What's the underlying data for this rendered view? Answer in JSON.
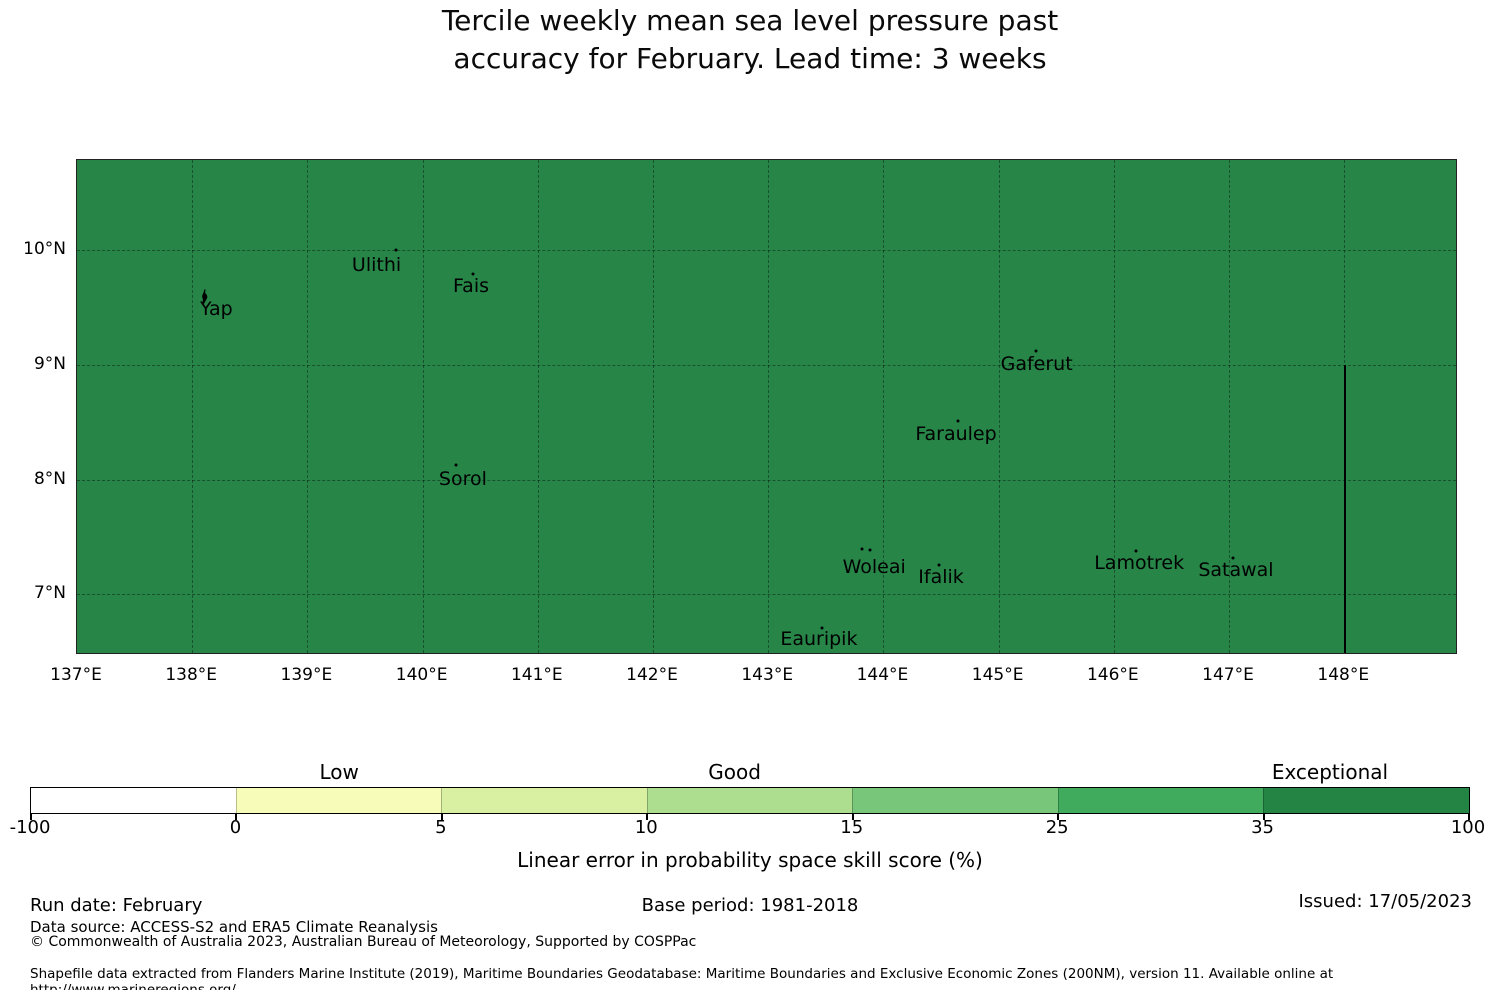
{
  "title": {
    "line1": "Tercile weekly mean sea level pressure past",
    "line2": "accuracy for February. Lead time: 3 weeks"
  },
  "chart_data": {
    "type": "heatmap",
    "subtype": "geographic skill score map (Federated States of Micronesia / Yap region)",
    "title": "Tercile weekly mean sea level pressure past accuracy for February. Lead time: 3 weeks",
    "field_note": "entire mapped region falls in the 35-100 skill bin (uniform dark green fill)",
    "map_fill_color": "#268547",
    "lon_range": [
      137.0,
      148.97
    ],
    "lat_range": [
      6.49,
      10.785
    ],
    "lon_gridlines": [
      138,
      139,
      140,
      141,
      142,
      143,
      144,
      145,
      146,
      147,
      148
    ],
    "lat_gridlines": [
      7,
      8,
      9,
      10
    ],
    "x_ticks": [
      {
        "label": "137°E",
        "lon": 137
      },
      {
        "label": "138°E",
        "lon": 138
      },
      {
        "label": "139°E",
        "lon": 139
      },
      {
        "label": "140°E",
        "lon": 140
      },
      {
        "label": "141°E",
        "lon": 141
      },
      {
        "label": "142°E",
        "lon": 142
      },
      {
        "label": "143°E",
        "lon": 143
      },
      {
        "label": "144°E",
        "lon": 144
      },
      {
        "label": "145°E",
        "lon": 145
      },
      {
        "label": "146°E",
        "lon": 146
      },
      {
        "label": "147°E",
        "lon": 147
      },
      {
        "label": "148°E",
        "lon": 148
      }
    ],
    "y_ticks": [
      {
        "label": "10°N",
        "lat": 10
      },
      {
        "label": "9°N",
        "lat": 9
      },
      {
        "label": "8°N",
        "lat": 8
      },
      {
        "label": "7°N",
        "lat": 7
      }
    ],
    "islands": [
      {
        "name": "yap",
        "label": "Yap",
        "label_lon": 138.21,
        "label_lat": 9.49,
        "shape": true,
        "markers": [
          [
            138.11,
            9.57
          ]
        ]
      },
      {
        "name": "ulithi",
        "label": "Ulithi",
        "label_lon": 139.6,
        "label_lat": 9.87,
        "markers": [
          [
            139.77,
            10.0
          ]
        ]
      },
      {
        "name": "fais",
        "label": "Fais",
        "label_lon": 140.42,
        "label_lat": 9.69,
        "markers": [
          [
            140.44,
            9.79
          ]
        ]
      },
      {
        "name": "sorol",
        "label": "Sorol",
        "label_lon": 140.35,
        "label_lat": 8.01,
        "markers": [
          [
            140.29,
            8.13
          ]
        ]
      },
      {
        "name": "gaferut",
        "label": "Gaferut",
        "label_lon": 145.33,
        "label_lat": 9.01,
        "markers": [
          [
            145.32,
            9.12
          ]
        ]
      },
      {
        "name": "faraulep",
        "label": "Faraulep",
        "label_lon": 144.63,
        "label_lat": 8.4,
        "markers": [
          [
            144.65,
            8.51
          ]
        ]
      },
      {
        "name": "woleai",
        "label": "Woleai",
        "label_lon": 143.92,
        "label_lat": 7.24,
        "markers": [
          [
            143.81,
            7.4
          ],
          [
            143.88,
            7.39
          ]
        ]
      },
      {
        "name": "ifalik",
        "label": "Ifalik",
        "label_lon": 144.5,
        "label_lat": 7.15,
        "markers": [
          [
            144.48,
            7.26
          ]
        ]
      },
      {
        "name": "lamotrek",
        "label": "Lamotrek",
        "label_lon": 146.22,
        "label_lat": 7.27,
        "markers": [
          [
            146.19,
            7.38
          ]
        ]
      },
      {
        "name": "satawal",
        "label": "Satawal",
        "label_lon": 147.06,
        "label_lat": 7.21,
        "markers": [
          [
            147.03,
            7.32
          ]
        ]
      },
      {
        "name": "eauripik",
        "label": "Eauripik",
        "label_lon": 143.44,
        "label_lat": 6.61,
        "markers": [
          [
            143.47,
            6.71
          ]
        ]
      }
    ],
    "boundary_line": {
      "lon": 148.0,
      "lat_from": 9.0,
      "lat_to": 6.49,
      "color": "#000000"
    },
    "colorbar": {
      "boundaries": [
        -100,
        0,
        5,
        10,
        15,
        25,
        35,
        100
      ],
      "tick_labels": [
        "-100",
        "0",
        "5",
        "10",
        "15",
        "25",
        "35",
        "100"
      ],
      "colors": [
        "#ffffff",
        "#f7fcb9",
        "#d9f0a3",
        "#addd8e",
        "#78c679",
        "#41ab5d",
        "#238443"
      ],
      "category_labels": [
        {
          "label": "Low",
          "position": 0.215
        },
        {
          "label": "Good",
          "position": 0.49
        },
        {
          "label": "Exceptional",
          "position": 0.904
        }
      ],
      "axis_label": "Linear error in probability space skill score (%)"
    }
  },
  "footer": {
    "run_date": "Run date: February",
    "base_period": "Base period: 1981-2018",
    "issued": "Issued: 17/05/2023",
    "data_source": "Data source: ACCESS-S2 and ERA5 Climate Reanalysis",
    "copyright": "© Commonwealth of Australia 2023, Australian Bureau of Meteorology, Supported by COSPPac",
    "shapefile_note": "Shapefile data extracted from Flanders Marine Institute (2019), Maritime Boundaries Geodatabase: Maritime Boundaries and Exclusive Economic Zones (200NM), version 11. Available online at http://www.marineregions.org/."
  }
}
